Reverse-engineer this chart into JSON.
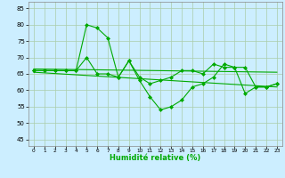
{
  "xlabel": "Humidité relative (%)",
  "background_color": "#cceeff",
  "grid_color": "#aaccaa",
  "line_color": "#00aa00",
  "xlim": [
    -0.5,
    23.5
  ],
  "ylim": [
    43,
    87
  ],
  "yticks": [
    45,
    50,
    55,
    60,
    65,
    70,
    75,
    80,
    85
  ],
  "xticks": [
    0,
    1,
    2,
    3,
    4,
    5,
    6,
    7,
    8,
    9,
    10,
    11,
    12,
    13,
    14,
    15,
    16,
    17,
    18,
    19,
    20,
    21,
    22,
    23
  ],
  "lines": [
    {
      "x": [
        0,
        1,
        2,
        3,
        4,
        5,
        6,
        7,
        8,
        9,
        10,
        11,
        12,
        13,
        14,
        15,
        16,
        17,
        18,
        19,
        20,
        21,
        22,
        23
      ],
      "y": [
        66,
        66,
        66,
        66,
        66,
        70,
        65,
        65,
        64,
        69,
        63,
        58,
        54,
        55,
        57,
        61,
        62,
        64,
        68,
        67,
        59,
        61,
        61,
        62
      ],
      "marker": "D",
      "markersize": 2.0,
      "linewidth": 0.8
    },
    {
      "x": [
        0,
        1,
        2,
        3,
        4,
        5,
        6,
        7,
        8,
        9,
        10,
        11,
        12,
        13,
        14,
        15,
        16,
        17,
        18,
        19,
        20,
        21,
        22,
        23
      ],
      "y": [
        66,
        66,
        66,
        66,
        66,
        80,
        79,
        76,
        64,
        69,
        64,
        62,
        63,
        64,
        66,
        66,
        65,
        68,
        67,
        67,
        67,
        61,
        61,
        62
      ],
      "marker": "D",
      "markersize": 2.0,
      "linewidth": 0.8
    },
    {
      "x": [
        0,
        23
      ],
      "y": [
        66.5,
        65.5
      ],
      "marker": null,
      "markersize": 0,
      "linewidth": 0.8
    },
    {
      "x": [
        0,
        23
      ],
      "y": [
        65.5,
        61.0
      ],
      "marker": null,
      "markersize": 0,
      "linewidth": 0.8
    }
  ]
}
